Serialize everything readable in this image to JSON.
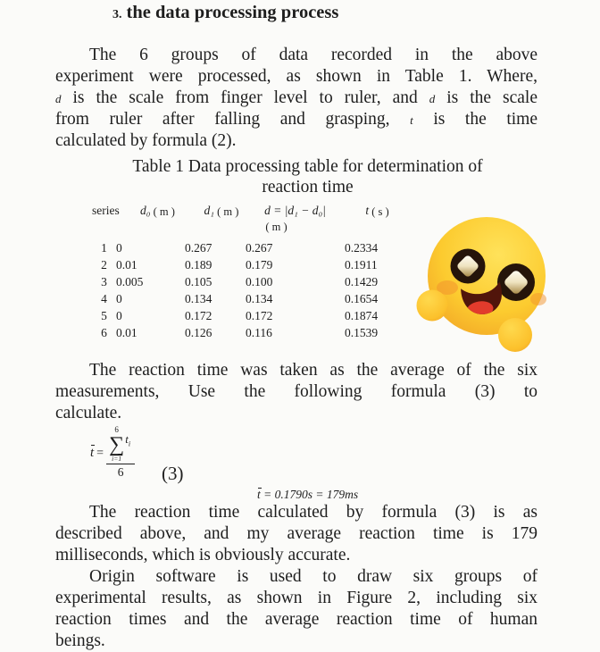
{
  "title": {
    "number": "3.",
    "text": "the data processing process"
  },
  "paragraphs": [
    {
      "id": "p1",
      "lines": [
        {
          "indent": true,
          "just": true,
          "segs": [
            {
              "t": "The 6 groups of data recorded in the above"
            }
          ]
        },
        {
          "just": true,
          "segs": [
            {
              "t": "experiment were processed, as shown in Table 1. Where,"
            }
          ]
        },
        {
          "just": true,
          "segs": [
            {
              "v": "d"
            },
            {
              "t": " is the scale from finger level to ruler, and "
            },
            {
              "v": "d"
            },
            {
              "t": " is the scale"
            }
          ]
        },
        {
          "just": true,
          "segs": [
            {
              "t": "from ruler after falling and grasping, "
            },
            {
              "v": "t"
            },
            {
              "t": " is the time"
            }
          ]
        },
        {
          "segs": [
            {
              "t": "calculated by formula (2)."
            }
          ]
        }
      ]
    },
    {
      "id": "p2",
      "lines": [
        {
          "indent": true,
          "just": true,
          "segs": [
            {
              "t": "The reaction time was taken as the average of the six"
            }
          ]
        },
        {
          "just": true,
          "segs": [
            {
              "t": "measurements, Use the following formula (3) to"
            }
          ]
        },
        {
          "segs": [
            {
              "t": "calculate."
            }
          ]
        }
      ]
    },
    {
      "id": "p3",
      "lines": [
        {
          "indent": true,
          "just": true,
          "segs": [
            {
              "t": "The reaction time calculated by formula (3) is as"
            }
          ]
        },
        {
          "just": true,
          "segs": [
            {
              "t": "described above, and my average reaction time is 179"
            }
          ]
        },
        {
          "segs": [
            {
              "t": "milliseconds, which is obviously accurate."
            }
          ]
        }
      ]
    },
    {
      "id": "p4",
      "lines": [
        {
          "indent": true,
          "just": true,
          "segs": [
            {
              "t": "Origin software is used to draw six groups of"
            }
          ]
        },
        {
          "just": true,
          "segs": [
            {
              "t": "experimental results, as shown in Figure 2, including six"
            }
          ]
        },
        {
          "just": true,
          "segs": [
            {
              "t": "reaction times and the average reaction time of human"
            }
          ]
        },
        {
          "segs": [
            {
              "t": "beings."
            }
          ]
        }
      ]
    }
  ],
  "table_caption": {
    "line1": "Table 1  Data processing table for determination of",
    "line2": "reaction time"
  },
  "table": {
    "headers": [
      {
        "main": "series",
        "italic": false
      },
      {
        "main": "d₀",
        "unit": "( m )",
        "italic": true
      },
      {
        "main": "d₁",
        "unit": "( m )",
        "italic": true
      },
      {
        "main": "d = |d₁ − d₀|",
        "unit2": "( m )",
        "italic": true
      },
      {
        "main": "t",
        "unit": "( s )",
        "italic": true
      }
    ],
    "rows": [
      [
        "1",
        "0",
        "0.267",
        "0.267",
        "0.2334"
      ],
      [
        "2",
        "0.01",
        "0.189",
        "0.179",
        "0.1911"
      ],
      [
        "3",
        "0.005",
        "0.105",
        "0.100",
        "0.1429"
      ],
      [
        "4",
        "0",
        "0.134",
        "0.134",
        "0.1654"
      ],
      [
        "5",
        "0",
        "0.172",
        "0.172",
        "0.1874"
      ],
      [
        "6",
        "0.01",
        "0.126",
        "0.116",
        "0.1539"
      ]
    ]
  },
  "formula": {
    "lhs": "t",
    "eq": "=",
    "sum_upper": "6",
    "sum_sigma": "∑",
    "sum_lower": "i=1",
    "sum_term": "t",
    "sum_term_sub": "i",
    "denominator": "6",
    "label": "(3)",
    "result_var": "t",
    "result_rest": " = 0.1790s = 179ms"
  },
  "emoji": {
    "name": "starry-eyes-emoji"
  },
  "colors": {
    "page_bg": "#fbfbf9",
    "text": "#1e1e1e",
    "emoji_yellow": "#fcc92f",
    "emoji_orange": "#ec9b25",
    "eye_dark": "#25140a",
    "sparkle_gold": "#c9a84c",
    "tongue_red": "#e23b2c"
  }
}
